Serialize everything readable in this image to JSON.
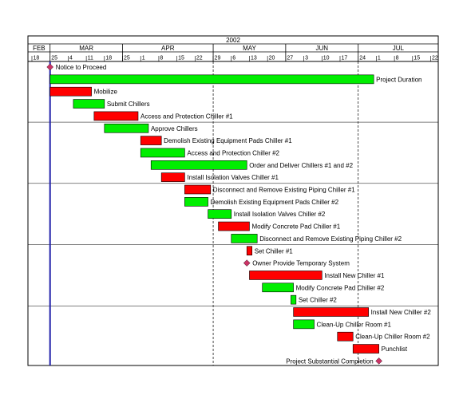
{
  "chart_data": {
    "type": "gantt",
    "year_label": "2002",
    "months": [
      {
        "label": "FEB",
        "start": "2002-02-18"
      },
      {
        "label": "MAR",
        "start": "2002-02-25"
      },
      {
        "label": "APR",
        "start": "2002-03-25"
      },
      {
        "label": "MAY",
        "start": "2002-04-29"
      },
      {
        "label": "JUN",
        "start": "2002-05-27"
      },
      {
        "label": "JUL",
        "start": "2002-06-24"
      }
    ],
    "axis_end": "2002-07-24",
    "week_ticks": [
      {
        "date": "2002-02-18",
        "label": "18"
      },
      {
        "date": "2002-02-25",
        "label": "25"
      },
      {
        "date": "2002-03-04",
        "label": "4"
      },
      {
        "date": "2002-03-11",
        "label": "11"
      },
      {
        "date": "2002-03-18",
        "label": "18"
      },
      {
        "date": "2002-03-25",
        "label": "25"
      },
      {
        "date": "2002-04-01",
        "label": "1"
      },
      {
        "date": "2002-04-08",
        "label": "8"
      },
      {
        "date": "2002-04-15",
        "label": "15"
      },
      {
        "date": "2002-04-22",
        "label": "22"
      },
      {
        "date": "2002-04-29",
        "label": "29"
      },
      {
        "date": "2002-05-06",
        "label": "6"
      },
      {
        "date": "2002-05-13",
        "label": "13"
      },
      {
        "date": "2002-05-20",
        "label": "20"
      },
      {
        "date": "2002-05-27",
        "label": "27"
      },
      {
        "date": "2002-06-03",
        "label": "3"
      },
      {
        "date": "2002-06-10",
        "label": "10"
      },
      {
        "date": "2002-06-17",
        "label": "17"
      },
      {
        "date": "2002-06-24",
        "label": "24"
      },
      {
        "date": "2002-07-01",
        "label": "1"
      },
      {
        "date": "2002-07-08",
        "label": "8"
      },
      {
        "date": "2002-07-15",
        "label": "15"
      },
      {
        "date": "2002-07-22",
        "label": "22"
      }
    ],
    "today_line": "2002-02-25",
    "status_lines": [
      "2002-04-29",
      "2002-06-24"
    ],
    "colors": {
      "critical": "#ff0000",
      "noncritical": "#00ee00",
      "milestone": "#cc3366",
      "today": "#2222aa"
    },
    "tasks": [
      {
        "name": "Notice to Proceed",
        "type": "milestone",
        "date": "2002-02-25"
      },
      {
        "name": "Project Duration",
        "type": "bar",
        "critical": false,
        "start": "2002-02-25",
        "end": "2002-06-30"
      },
      {
        "name": "Mobilize",
        "type": "bar",
        "critical": true,
        "start": "2002-02-25",
        "end": "2002-03-13"
      },
      {
        "name": "Submit Chillers",
        "type": "bar",
        "critical": false,
        "start": "2002-03-06",
        "end": "2002-03-18"
      },
      {
        "name": "Access and Protection Chiller #1",
        "type": "bar",
        "critical": true,
        "start": "2002-03-14",
        "end": "2002-03-31"
      },
      {
        "name": "Approve Chillers",
        "type": "bar",
        "critical": false,
        "start": "2002-03-18",
        "end": "2002-04-04"
      },
      {
        "name": "Demolish Existing Equipment Pads Chiller #1",
        "type": "bar",
        "critical": true,
        "start": "2002-04-01",
        "end": "2002-04-09"
      },
      {
        "name": "Access and Protection Chiller #2",
        "type": "bar",
        "critical": false,
        "start": "2002-04-01",
        "end": "2002-04-18"
      },
      {
        "name": "Order and Deliver Chillers #1 and #2",
        "type": "bar",
        "critical": false,
        "start": "2002-04-05",
        "end": "2002-05-12"
      },
      {
        "name": "Install Isolation Valves Chiller #1",
        "type": "bar",
        "critical": true,
        "start": "2002-04-09",
        "end": "2002-04-18"
      },
      {
        "name": "Disconnect and Remove Existing Piping Chiller #1",
        "type": "bar",
        "critical": true,
        "start": "2002-04-18",
        "end": "2002-04-28"
      },
      {
        "name": "Demolish Existing Equipment Pads Chiller #2",
        "type": "bar",
        "critical": false,
        "start": "2002-04-18",
        "end": "2002-04-27"
      },
      {
        "name": "Install Isolation Valves Chiller #2",
        "type": "bar",
        "critical": false,
        "start": "2002-04-27",
        "end": "2002-05-06"
      },
      {
        "name": "Modify Concrete Pad Chiller #1",
        "type": "bar",
        "critical": true,
        "start": "2002-05-01",
        "end": "2002-05-13"
      },
      {
        "name": "Disconnect and Remove Existing Piping Chiller #2",
        "type": "bar",
        "critical": false,
        "start": "2002-05-06",
        "end": "2002-05-16"
      },
      {
        "name": "Set Chiller #1",
        "type": "bar",
        "critical": true,
        "start": "2002-05-12",
        "end": "2002-05-14"
      },
      {
        "name": "Owner Provide Temporary System",
        "type": "milestone",
        "date": "2002-05-12"
      },
      {
        "name": "Install New Chiller #1",
        "type": "bar",
        "critical": true,
        "start": "2002-05-13",
        "end": "2002-06-10"
      },
      {
        "name": "Modify Concrete Pad Chiller #2",
        "type": "bar",
        "critical": false,
        "start": "2002-05-18",
        "end": "2002-05-30"
      },
      {
        "name": "Set Chiller #2",
        "type": "bar",
        "critical": false,
        "start": "2002-05-29",
        "end": "2002-05-31"
      },
      {
        "name": "Install New Chiller #2",
        "type": "bar",
        "critical": true,
        "start": "2002-05-30",
        "end": "2002-06-28"
      },
      {
        "name": "Clean-Up Chiller Room #1",
        "type": "bar",
        "critical": false,
        "start": "2002-05-30",
        "end": "2002-06-07"
      },
      {
        "name": "Clean-Up Chiller Room #2",
        "type": "bar",
        "critical": true,
        "start": "2002-06-16",
        "end": "2002-06-22"
      },
      {
        "name": "Punchlist",
        "type": "bar",
        "critical": true,
        "start": "2002-06-22",
        "end": "2002-07-02"
      },
      {
        "name": "Project Substantial Completion",
        "type": "milestone",
        "date": "2002-07-02",
        "label_left": true
      }
    ]
  }
}
